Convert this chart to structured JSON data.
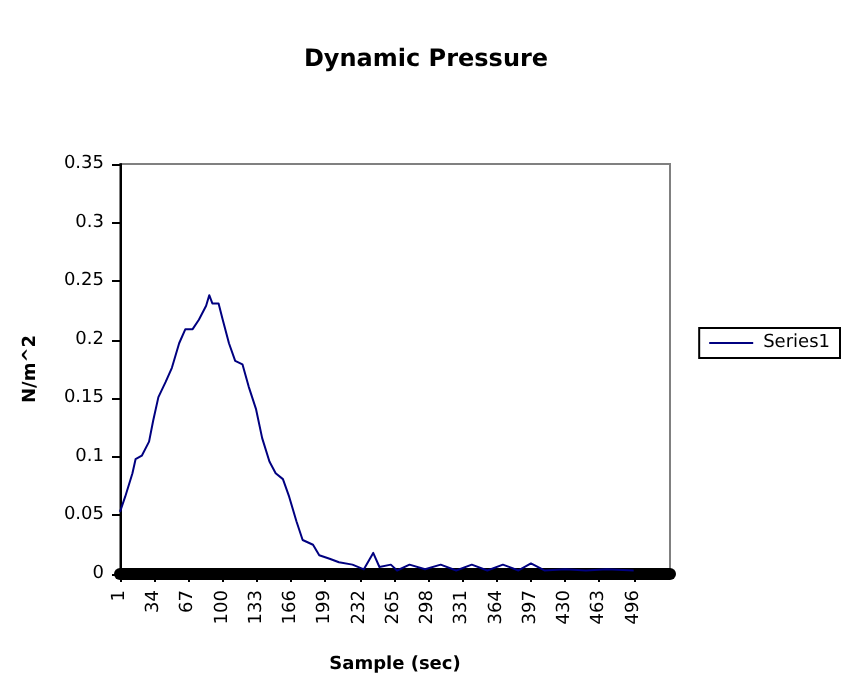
{
  "chart_data": {
    "type": "line",
    "title": "Dynamic Pressure",
    "xlabel": "Sample (sec)",
    "ylabel": "N/m^2",
    "xlim": [
      1,
      531
    ],
    "xticks": [
      1,
      34,
      67,
      100,
      133,
      166,
      199,
      232,
      265,
      298,
      331,
      364,
      397,
      430,
      463,
      496
    ],
    "ylim": [
      0,
      0.35
    ],
    "yticks": [
      0,
      0.05,
      0.1,
      0.15,
      0.2,
      0.25,
      0.3,
      0.35
    ],
    "grid": false,
    "legend": "right",
    "marker": "none",
    "line_style": "solid",
    "series": [
      {
        "name": "Series1",
        "color": "#000080",
        "x": [
          1,
          6,
          13,
          16,
          22,
          29,
          33,
          38,
          45,
          51,
          58,
          64,
          71,
          77,
          84,
          87,
          90,
          96,
          100,
          106,
          112,
          119,
          125,
          132,
          138,
          145,
          151,
          158,
          164,
          171,
          177,
          187,
          193,
          203,
          212,
          225,
          236,
          245,
          251,
          262,
          268,
          280,
          295,
          310,
          325,
          340,
          355,
          370,
          385,
          397,
          410,
          430,
          450,
          470,
          496
        ],
        "values": [
          0.053,
          0.066,
          0.086,
          0.098,
          0.101,
          0.113,
          0.131,
          0.151,
          0.164,
          0.176,
          0.197,
          0.209,
          0.209,
          0.217,
          0.229,
          0.238,
          0.231,
          0.231,
          0.217,
          0.197,
          0.182,
          0.179,
          0.16,
          0.141,
          0.116,
          0.096,
          0.086,
          0.081,
          0.066,
          0.045,
          0.029,
          0.025,
          0.016,
          0.013,
          0.01,
          0.008,
          0.004,
          0.018,
          0.006,
          0.008,
          0.003,
          0.008,
          0.004,
          0.008,
          0.003,
          0.008,
          0.003,
          0.008,
          0.003,
          0.009,
          0.003,
          0.004,
          0.003,
          0.004,
          0.003
        ]
      }
    ]
  }
}
